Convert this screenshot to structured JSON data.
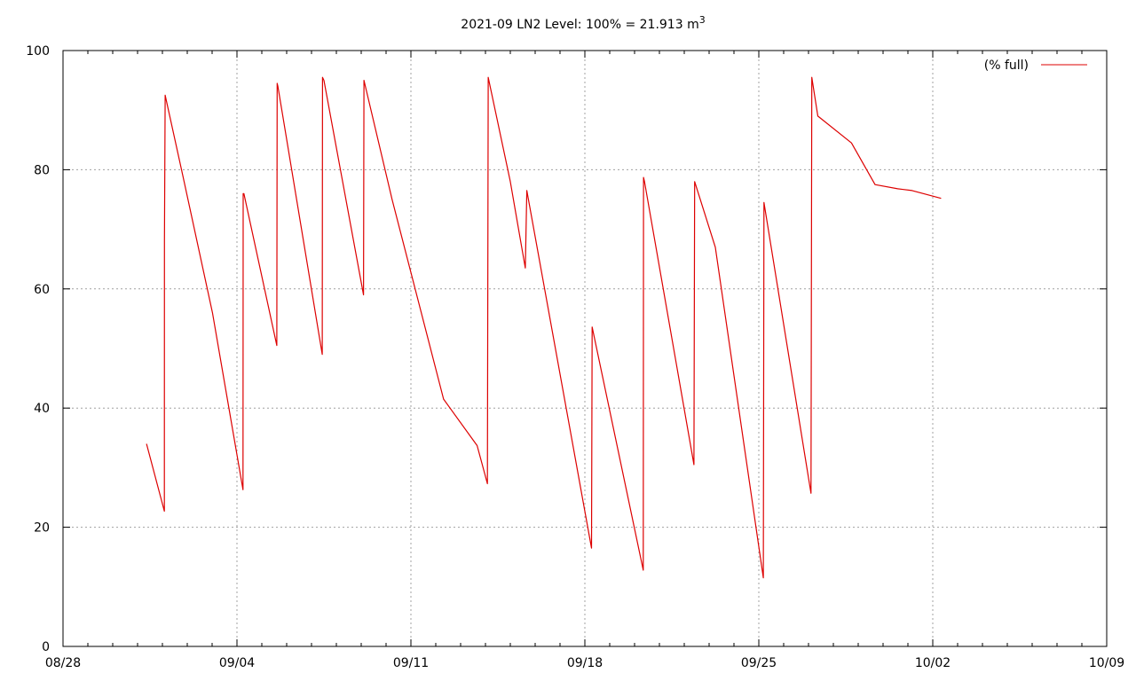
{
  "chart_data": {
    "type": "line",
    "title_main": "2021-09 LN2 Level: 100% = 21.913 m",
    "title_sup": "3",
    "xlabel": "",
    "ylabel": "",
    "x_unit": "days",
    "x_ticks": [
      "08/28",
      "09/04",
      "09/11",
      "09/18",
      "09/25",
      "10/02",
      "10/09"
    ],
    "y_ticks": [
      "0",
      "20",
      "40",
      "60",
      "80",
      "100"
    ],
    "xlim": [
      "2021-08-28",
      "2021-10-09"
    ],
    "ylim": [
      0,
      100
    ],
    "grid": true,
    "legend_position": "top-right",
    "colors": {
      "series": "#dd0000",
      "grid": "#a0a0a0",
      "axis": "#000000"
    },
    "series": [
      {
        "name": "(% full)",
        "x": [
          "2021-08-31 08:40",
          "2021-09-01 01:55",
          "2021-09-01 02:00",
          "2021-09-01 02:40",
          "2021-09-01 19:45",
          "2021-09-03 00:20",
          "2021-09-04 05:50",
          "2021-09-04 06:00",
          "2021-09-04 06:40",
          "2021-09-05 14:30",
          "2021-09-05 14:50",
          "2021-09-05 15:30",
          "2021-09-07 10:20",
          "2021-09-07 10:40",
          "2021-09-07 12:00",
          "2021-09-09 02:15",
          "2021-09-09 02:40",
          "2021-09-10 05:50",
          "2021-09-12 07:30",
          "2021-09-13 15:55",
          "2021-09-14 01:55",
          "2021-09-14 02:40",
          "2021-09-15 00:00",
          "2021-09-15 14:30",
          "2021-09-15 15:55",
          "2021-09-18 06:25",
          "2021-09-18 07:00",
          "2021-09-20 08:25",
          "2021-09-20 08:40",
          "2021-09-20 09:35",
          "2021-09-22 09:20",
          "2021-09-22 10:00",
          "2021-09-23 06:00",
          "2021-09-25 04:20",
          "2021-09-25 05:00",
          "2021-09-27 02:25",
          "2021-09-27 03:10",
          "2021-09-27 09:00",
          "2021-09-28 17:30",
          "2021-09-29 16:15",
          "2021-09-30 14:10",
          "2021-10-01 04:00",
          "2021-10-02 08:05"
        ],
        "y": [
          34,
          22.7,
          68,
          92.5,
          79,
          56,
          26.3,
          76,
          76,
          50.5,
          94.5,
          94,
          49,
          95.5,
          95,
          59,
          95,
          75,
          41.5,
          33.7,
          27.3,
          95.5,
          78,
          63.5,
          76.5,
          16.5,
          53.6,
          12.8,
          78.7,
          78,
          30.5,
          78,
          67,
          11.5,
          74.5,
          25.7,
          95.5,
          89,
          84.5,
          77.5,
          76.8,
          76.5,
          75.2
        ]
      }
    ]
  }
}
